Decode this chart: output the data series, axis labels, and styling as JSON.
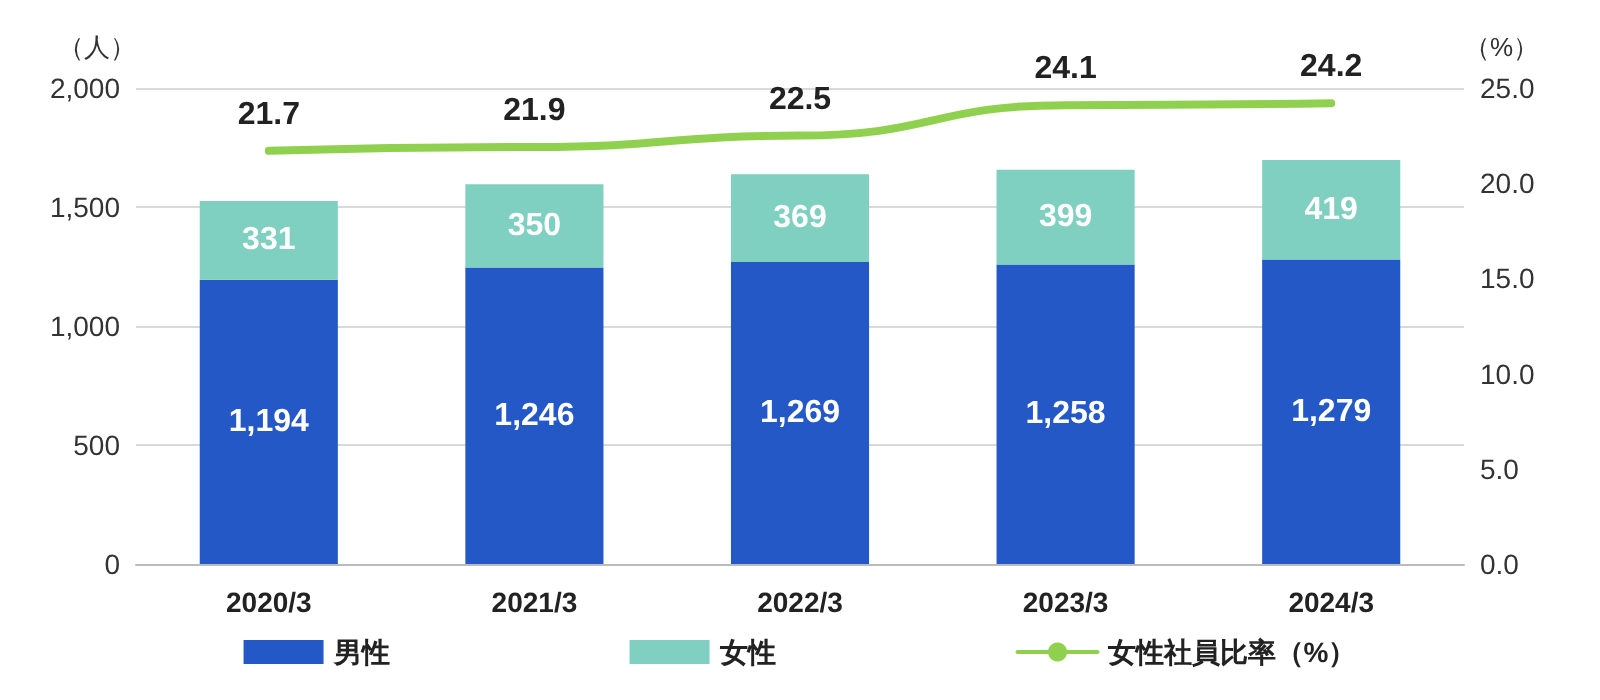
{
  "chart_data": {
    "type": "bar",
    "stacked": true,
    "ylabel": "（人）",
    "y2label": "（%）",
    "categories": [
      "2020/3",
      "2021/3",
      "2022/3",
      "2023/3",
      "2024/3"
    ],
    "series": [
      {
        "name": "男性",
        "color": "#2358c6",
        "values": [
          1194,
          1246,
          1269,
          1258,
          1279
        ],
        "value_labels": [
          "1,194",
          "1,246",
          "1,269",
          "1,258",
          "1,279"
        ]
      },
      {
        "name": "女性",
        "color": "#7fd0c0",
        "values": [
          331,
          350,
          369,
          399,
          419
        ],
        "value_labels": [
          "331",
          "350",
          "369",
          "399",
          "419"
        ]
      },
      {
        "name": "女性社員比率（%）",
        "type": "line",
        "axis": "y2",
        "color": "#8fd14f",
        "values": [
          21.7,
          21.9,
          22.5,
          24.1,
          24.2
        ],
        "value_labels": [
          "21.7",
          "21.9",
          "22.5",
          "24.1",
          "24.2"
        ]
      }
    ],
    "ylim": [
      0,
      2000
    ],
    "yticks": [
      0,
      500,
      {
        "value": 1000,
        "label": "1,000"
      },
      {
        "value": 1500,
        "label": "1,500"
      },
      {
        "value": 2000,
        "label": "2,000"
      }
    ],
    "y2lim": [
      0,
      25
    ],
    "y2ticks": [
      {
        "value": 0,
        "label": "0.0"
      },
      {
        "value": 5,
        "label": "5.0"
      },
      {
        "value": 10,
        "label": "10.0"
      },
      {
        "value": 15,
        "label": "15.0"
      },
      {
        "value": 20,
        "label": "20.0"
      },
      {
        "value": 25,
        "label": "25.0"
      }
    ],
    "grid": "y",
    "legend": "bottom",
    "marker": "none",
    "line_style": "solid"
  }
}
